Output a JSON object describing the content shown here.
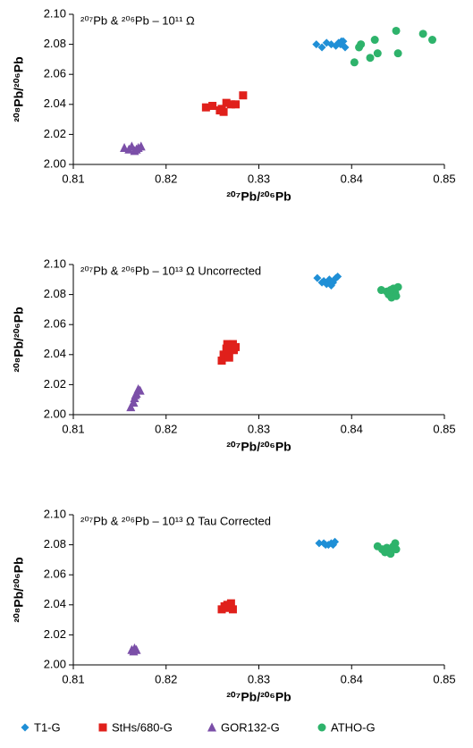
{
  "legend": [
    {
      "name": "T1-G",
      "color": "#1f8fd6",
      "marker": "diamond"
    },
    {
      "name": "StHs/680-G",
      "color": "#e0201b",
      "marker": "square"
    },
    {
      "name": "GOR132-G",
      "color": "#7b4fa8",
      "marker": "triangle"
    },
    {
      "name": "ATHO-G",
      "color": "#2eb36b",
      "marker": "circle"
    }
  ],
  "chart_data": [
    {
      "type": "scatter",
      "title": "²⁰⁷Pb & ²⁰⁶Pb – 10¹¹ Ω",
      "x_label": "²⁰⁷Pb/²⁰⁶Pb",
      "y_label": "²⁰⁸Pb/²⁰⁶Pb",
      "xlim": [
        0.81,
        0.85
      ],
      "xticks": [
        0.81,
        0.82,
        0.83,
        0.84,
        0.85
      ],
      "ylim": [
        2.0,
        2.1
      ],
      "yticks": [
        {
          "value": 2.0,
          "label": "2.00"
        },
        2.02,
        2.04,
        2.06,
        2.08,
        {
          "value": 2.1,
          "label": "2.10"
        }
      ],
      "series": [
        {
          "x": [
            0.8362,
            0.8368,
            0.8373,
            0.8378,
            0.8383,
            0.8386,
            0.8389,
            0.8391,
            0.8393,
            0.8388
          ],
          "values": [
            2.08,
            2.078,
            2.081,
            2.08,
            2.079,
            2.081,
            2.082,
            2.082,
            2.078,
            2.08
          ]
        },
        {
          "x": [
            0.8243,
            0.825,
            0.8258,
            0.8262,
            0.8265,
            0.827,
            0.8275,
            0.8283,
            0.826
          ],
          "values": [
            2.038,
            2.039,
            2.036,
            2.035,
            2.041,
            2.04,
            2.04,
            2.046,
            2.037
          ]
        },
        {
          "x": [
            0.8155,
            0.816,
            0.8163,
            0.8166,
            0.817,
            0.8173,
            0.8168
          ],
          "values": [
            2.011,
            2.01,
            2.012,
            2.009,
            2.011,
            2.012,
            2.01
          ]
        },
        {
          "x": [
            0.8403,
            0.8408,
            0.841,
            0.842,
            0.8425,
            0.8428,
            0.8448,
            0.845,
            0.8477,
            0.8487
          ],
          "values": [
            2.068,
            2.078,
            2.08,
            2.071,
            2.083,
            2.074,
            2.089,
            2.074,
            2.087,
            2.083
          ]
        }
      ]
    },
    {
      "type": "scatter",
      "title": "²⁰⁷Pb & ²⁰⁶Pb – 10¹³ Ω Uncorrected",
      "x_label": "²⁰⁷Pb/²⁰⁶Pb",
      "y_label": "²⁰⁸Pb/²⁰⁶Pb",
      "xlim": [
        0.81,
        0.85
      ],
      "xticks": [
        0.81,
        0.82,
        0.83,
        0.84,
        0.85
      ],
      "ylim": [
        2.0,
        2.1
      ],
      "yticks": [
        {
          "value": 2.0,
          "label": "2.00"
        },
        2.02,
        2.04,
        2.06,
        2.08,
        {
          "value": 2.1,
          "label": "2.10"
        }
      ],
      "series": [
        {
          "x": [
            0.8363,
            0.837,
            0.8373,
            0.8376,
            0.838,
            0.8383,
            0.8378,
            0.8368,
            0.8385
          ],
          "values": [
            2.091,
            2.089,
            2.087,
            2.09,
            2.088,
            2.091,
            2.086,
            2.088,
            2.092
          ]
        },
        {
          "x": [
            0.826,
            0.8262,
            0.8265,
            0.8267,
            0.827,
            0.8272,
            0.8275,
            0.8268,
            0.8273,
            0.8266
          ],
          "values": [
            2.036,
            2.04,
            2.044,
            2.042,
            2.046,
            2.047,
            2.045,
            2.038,
            2.043,
            2.047
          ]
        },
        {
          "x": [
            0.8162,
            0.8165,
            0.8166,
            0.8168,
            0.817,
            0.8172,
            0.8167
          ],
          "values": [
            2.005,
            2.008,
            2.011,
            2.014,
            2.017,
            2.016,
            2.013
          ]
        },
        {
          "x": [
            0.8432,
            0.8438,
            0.844,
            0.8443,
            0.8445,
            0.8447,
            0.845,
            0.8442,
            0.8448
          ],
          "values": [
            2.083,
            2.082,
            2.08,
            2.078,
            2.084,
            2.081,
            2.085,
            2.083,
            2.079
          ]
        }
      ]
    },
    {
      "type": "scatter",
      "title": "²⁰⁷Pb & ²⁰⁶Pb – 10¹³ Ω Tau Corrected",
      "x_label": "²⁰⁷Pb/²⁰⁶Pb",
      "y_label": "²⁰⁸Pb/²⁰⁶Pb",
      "xlim": [
        0.81,
        0.85
      ],
      "xticks": [
        0.81,
        0.82,
        0.83,
        0.84,
        0.85
      ],
      "ylim": [
        2.0,
        2.1
      ],
      "yticks": [
        {
          "value": 2.0,
          "label": "2.00"
        },
        2.02,
        2.04,
        2.06,
        2.08,
        {
          "value": 2.1,
          "label": "2.10"
        }
      ],
      "series": [
        {
          "x": [
            0.8365,
            0.837,
            0.8375,
            0.8378,
            0.8382,
            0.838,
            0.8372
          ],
          "values": [
            2.081,
            2.081,
            2.08,
            2.081,
            2.082,
            2.08,
            2.08
          ]
        },
        {
          "x": [
            0.826,
            0.8263,
            0.8266,
            0.8268,
            0.827,
            0.8272,
            0.8265
          ],
          "values": [
            2.037,
            2.039,
            2.04,
            2.038,
            2.041,
            2.037,
            2.038
          ]
        },
        {
          "x": [
            0.8163,
            0.8166,
            0.8168,
            0.8165
          ],
          "values": [
            2.01,
            2.011,
            2.01,
            2.009
          ]
        },
        {
          "x": [
            0.8428,
            0.8433,
            0.8436,
            0.844,
            0.8442,
            0.8445,
            0.8447,
            0.8448,
            0.8438
          ],
          "values": [
            2.079,
            2.077,
            2.075,
            2.076,
            2.074,
            2.079,
            2.081,
            2.077,
            2.078
          ]
        }
      ]
    }
  ]
}
